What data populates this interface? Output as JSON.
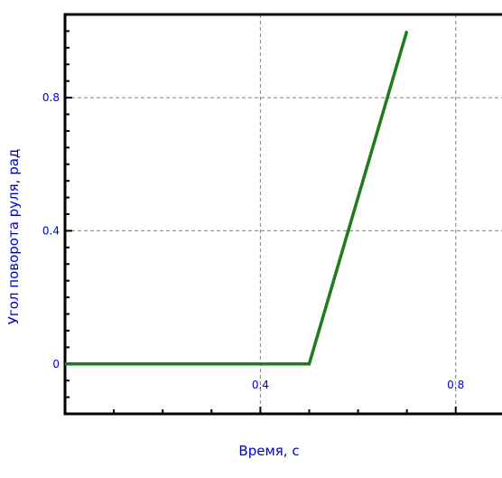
{
  "chart_data": {
    "type": "line",
    "title": "",
    "xlabel": "Время, с",
    "ylabel": "Угол поворота руля, рад",
    "xlim": [
      0,
      0.88
    ],
    "ylim": [
      -0.15,
      1.05
    ],
    "x_ticks": [
      0.4,
      0.8
    ],
    "x_tick_labels": [
      "0.4",
      "0.8"
    ],
    "y_ticks": [
      0,
      0.4,
      0.8
    ],
    "y_tick_labels": [
      "0",
      "0.4",
      "0.8"
    ],
    "grid": true,
    "legend": "none",
    "series": [
      {
        "color": "#1e7b1e",
        "x": [
          0,
          0.5,
          0.7
        ],
        "y": [
          0,
          0,
          1.0
        ]
      }
    ]
  }
}
